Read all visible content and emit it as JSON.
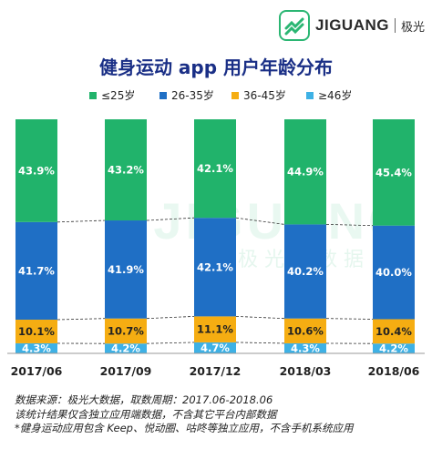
{
  "brand": {
    "name": "JIGUANG",
    "name_cn": "极光",
    "watermark_text": "JIGUANG",
    "watermark_cn": "极 光 大 数 据"
  },
  "chart_data": {
    "type": "bar",
    "stacked": true,
    "title": "健身运动 app 用户年龄分布",
    "categories": [
      "2017/06",
      "2017/09",
      "2017/12",
      "2018/03",
      "2018/06"
    ],
    "series": [
      {
        "name": "≤25岁",
        "color": "#21b36b",
        "values": [
          43.9,
          43.2,
          42.1,
          44.9,
          45.4
        ],
        "labels": [
          "43.9%",
          "43.2%",
          "42.1%",
          "44.9%",
          "45.4%"
        ]
      },
      {
        "name": "26-35岁",
        "color": "#1f6fc5",
        "values": [
          41.7,
          41.9,
          42.1,
          40.2,
          40.0
        ],
        "labels": [
          "41.7%",
          "41.9%",
          "42.1%",
          "40.2%",
          "40.0%"
        ]
      },
      {
        "name": "36-45岁",
        "color": "#f5ad12",
        "values": [
          10.1,
          10.7,
          11.1,
          10.6,
          10.4
        ],
        "labels": [
          "10.1%",
          "10.7%",
          "11.1%",
          "10.6%",
          "10.4%"
        ]
      },
      {
        "name": "≥46岁",
        "color": "#3eb1e5",
        "values": [
          4.3,
          4.2,
          4.7,
          4.3,
          4.2
        ],
        "labels": [
          "4.3%",
          "4.2%",
          "4.7%",
          "4.3%",
          "4.2%"
        ]
      }
    ],
    "ylim": [
      0,
      100
    ],
    "legend": "top",
    "grid": false
  },
  "footnotes": {
    "line1": "数据来源：极光大数据，取数周期：2017.06-2018.06",
    "line2": "该统计结果仅含独立应用端数据，不含其它平台内部数据",
    "line3": "*健身运动应用包含 Keep、悦动圈、咕咚等独立应用，不含手机系统应用"
  }
}
